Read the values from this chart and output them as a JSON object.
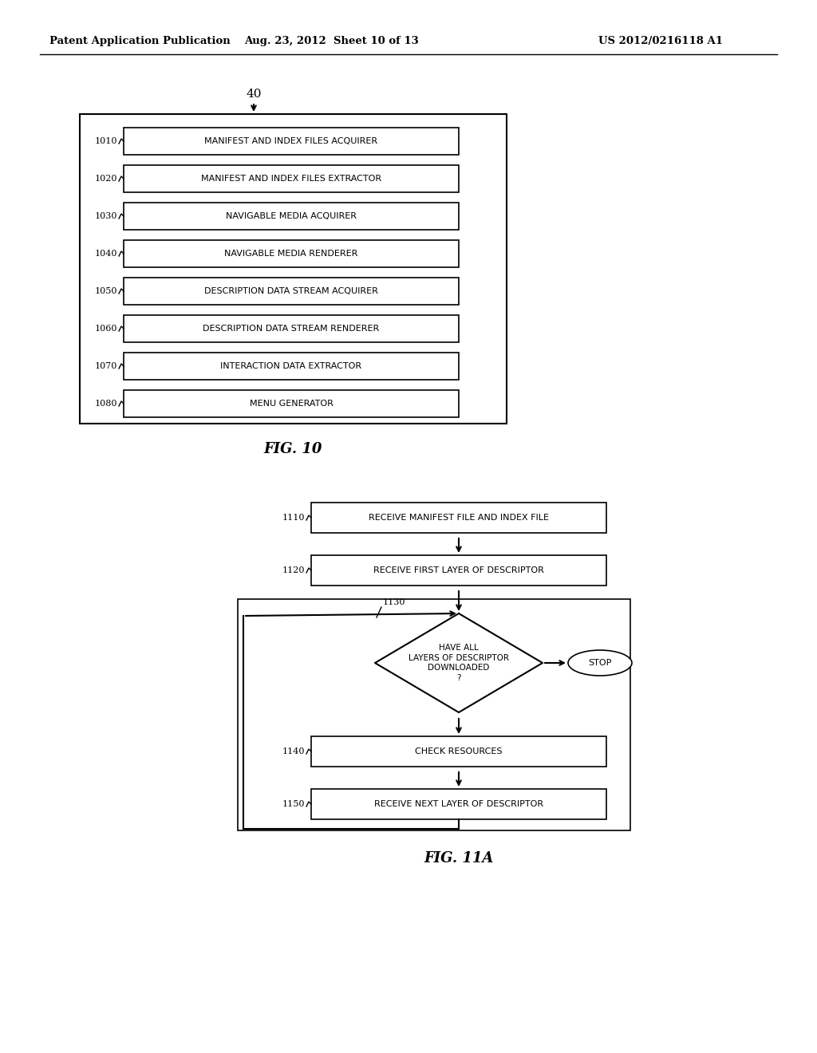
{
  "bg_color": "#ffffff",
  "header_left": "Patent Application Publication",
  "header_center": "Aug. 23, 2012  Sheet 10 of 13",
  "header_right": "US 2012/0216118 A1",
  "fig10_label": "40",
  "fig10_caption": "FIG. 10",
  "fig10_boxes": [
    {
      "id": "1010",
      "label": "MANIFEST AND INDEX FILES ACQUIRER"
    },
    {
      "id": "1020",
      "label": "MANIFEST AND INDEX FILES EXTRACTOR"
    },
    {
      "id": "1030",
      "label": "NAVIGABLE MEDIA ACQUIRER"
    },
    {
      "id": "1040",
      "label": "NAVIGABLE MEDIA RENDERER"
    },
    {
      "id": "1050",
      "label": "DESCRIPTION DATA STREAM ACQUIRER"
    },
    {
      "id": "1060",
      "label": "DESCRIPTION DATA STREAM RENDERER"
    },
    {
      "id": "1070",
      "label": "INTERACTION DATA EXTRACTOR"
    },
    {
      "id": "1080",
      "label": "MENU GENERATOR"
    }
  ],
  "fig11a_caption": "FIG. 11A",
  "fig11a_boxes": [
    {
      "id": "1110",
      "label": "RECEIVE MANIFEST FILE AND INDEX FILE",
      "type": "rect"
    },
    {
      "id": "1120",
      "label": "RECEIVE FIRST LAYER OF DESCRIPTOR",
      "type": "rect"
    },
    {
      "id": "1130",
      "label": "HAVE ALL\nLAYERS OF DESCRIPTOR\nDOWNLOADED\n?",
      "type": "diamond"
    },
    {
      "id": "1140",
      "label": "CHECK RESOURCES",
      "type": "rect"
    },
    {
      "id": "1150",
      "label": "RECEIVE NEXT LAYER OF DESCRIPTOR",
      "type": "rect"
    }
  ],
  "stop_label": "STOP"
}
